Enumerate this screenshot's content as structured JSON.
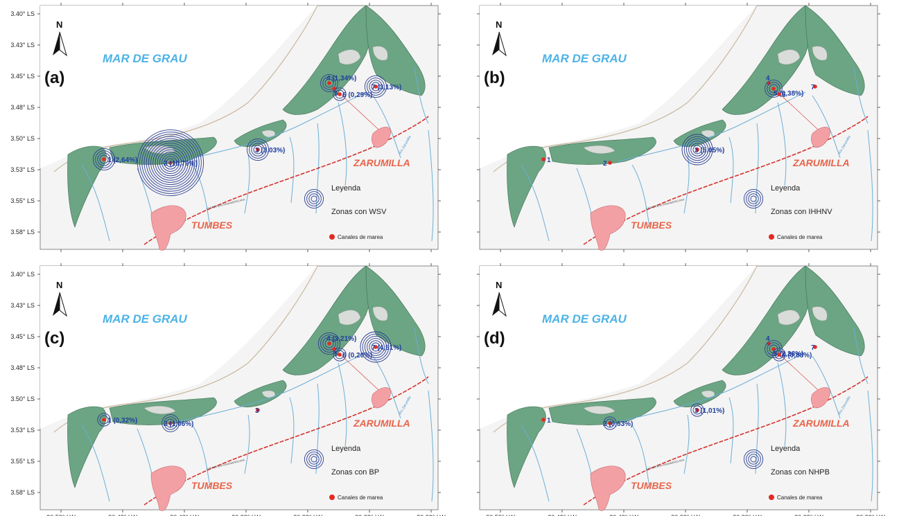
{
  "colors": {
    "land": "#f4f4f4",
    "mangrove": "#6ba583",
    "island": "#d9dcd9",
    "river": "#6baed6",
    "road": "#d6312c",
    "city_fill": "#f2a0a4",
    "rings": "#2c3e91",
    "site_dot": "#e32a22",
    "ocean_text": "#4db3e6",
    "city_text": "#e8644a",
    "site_text": "#1f3e9e"
  },
  "map": {
    "y_ticks": [
      "3.40° LS",
      "3.43° LS",
      "3.45° LS",
      "3.48° LS",
      "3.50° LS",
      "3.53° LS",
      "3.55° LS",
      "3.58° LS"
    ],
    "x_ticks_left": [
      "80.53° LW",
      "80.48° LW",
      "80.43° LW",
      "80.38° LW",
      "80.33° LW",
      "80.28° LW",
      "80.23° LW"
    ],
    "x_ticks_right": [
      "80.53° LW",
      "80.48° LW",
      "80.43° LW",
      "80.38° LW",
      "80.33° LW",
      "80.28° LW",
      "80.23° LW"
    ],
    "north_label": "N",
    "ocean_label": "MAR DE GRAU",
    "city_tumbes": "TUMBES",
    "city_zarumilla": "ZARUMILLA",
    "road_label": "CARRETERA PANAMERICANA",
    "river_label": "Río Zarumilla",
    "legend_title": "Leyenda",
    "legend_canal": "Canales de marea"
  },
  "panels": [
    {
      "label": "(a)",
      "legend_zone": "Zonas con WSV",
      "sites": [
        {
          "id": "1",
          "text": "1 (2,64%)",
          "rings": 4
        },
        {
          "id": "2",
          "text": "2 (10,79%)",
          "rings": 14
        },
        {
          "id": "3",
          "text": "3 (3,03%)",
          "rings": 4
        },
        {
          "id": "4",
          "text": "4 (1,34%)",
          "rings": 3
        },
        {
          "id": "5",
          "text": "5",
          "rings": 0
        },
        {
          "id": "6",
          "text": "6 (0,29%)",
          "rings": 2
        },
        {
          "id": "7",
          "text": "7 (3,13%)",
          "rings": 4
        }
      ]
    },
    {
      "label": "(b)",
      "legend_zone": "Zonas con  IHHNV",
      "sites": [
        {
          "id": "1",
          "text": "1",
          "rings": 0
        },
        {
          "id": "2",
          "text": "2",
          "rings": 0
        },
        {
          "id": "3",
          "text": "3 (5,05%)",
          "rings": 6
        },
        {
          "id": "4",
          "text": "4",
          "rings": 0
        },
        {
          "id": "5",
          "text": "5 (0,38%)",
          "rings": 3
        },
        {
          "id": "6",
          "text": "6",
          "rings": 0
        },
        {
          "id": "7",
          "text": "7",
          "rings": 0
        }
      ]
    },
    {
      "label": "(c)",
      "legend_zone": "Zonas con  BP",
      "sites": [
        {
          "id": "1",
          "text": "1 (0,32%)",
          "rings": 2
        },
        {
          "id": "2",
          "text": "2 (1,06%)",
          "rings": 3
        },
        {
          "id": "3",
          "text": "3",
          "rings": 0
        },
        {
          "id": "4",
          "text": "4 (3,21%)",
          "rings": 4
        },
        {
          "id": "5",
          "text": "5",
          "rings": 0
        },
        {
          "id": "6",
          "text": "6 (0,20%)",
          "rings": 2
        },
        {
          "id": "7",
          "text": "7 (4,51%)",
          "rings": 6
        }
      ]
    },
    {
      "label": "(d)",
      "legend_zone": "Zonas con  NHPB",
      "sites": [
        {
          "id": "1",
          "text": "1",
          "rings": 0
        },
        {
          "id": "2",
          "text": "2 (0,63%)",
          "rings": 2
        },
        {
          "id": "3",
          "text": "3 (1,01%)",
          "rings": 2
        },
        {
          "id": "4",
          "text": "4",
          "rings": 0
        },
        {
          "id": "5",
          "text": "5 (2,28%)",
          "rings": 3
        },
        {
          "id": "6",
          "text": "6 (0,88%)",
          "rings": 2
        },
        {
          "id": "7",
          "text": "7",
          "rings": 0
        }
      ]
    }
  ]
}
